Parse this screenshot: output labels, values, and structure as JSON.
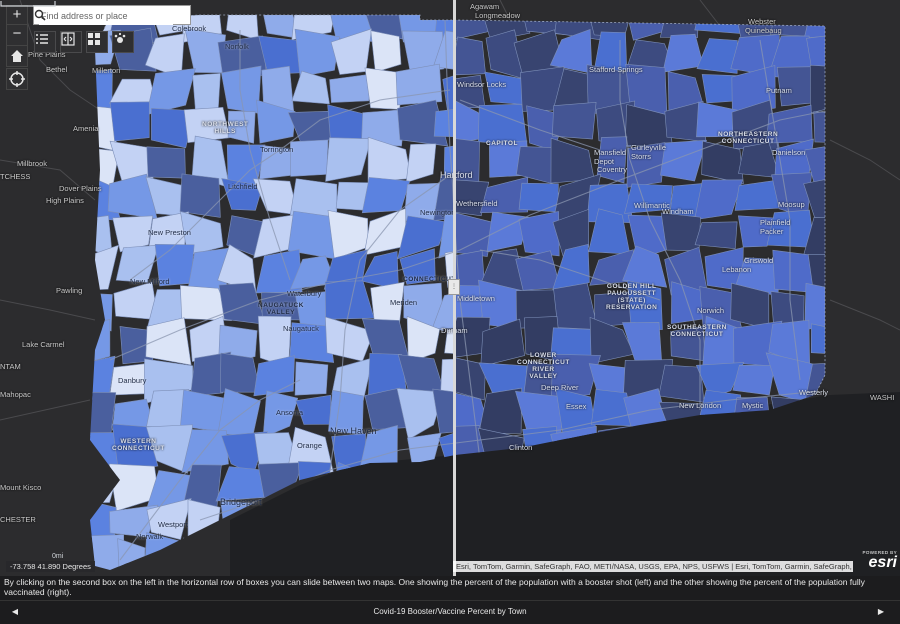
{
  "search": {
    "placeholder": "Find address or place"
  },
  "zoom": {
    "in_label": "+",
    "out_label": "−"
  },
  "coordinates": "-73.758 41.890 Degrees",
  "scale": {
    "label": "0mi"
  },
  "attribution": "Esri, TomTom, Garmin, SafeGraph, FAO, METI/NASA, USGS, EPA, NPS, USFWS | Esri, TomTom, Garmin, SafeGraph, F...",
  "esri": {
    "powered_by": "POWERED BY",
    "logo": "esri"
  },
  "caption": "By clicking on the second box on the left in the horizontal row of boxes you can slide between two maps. One showing the percent of the population with a booster shot (left) and the other showing the percent of the population fully vaccinated (right).",
  "footer": {
    "title": "Covid-19 Booster/Vaccine Percent by Town",
    "prev_label": "◀",
    "next_label": "▶"
  },
  "colors": {
    "ramp_light": "#dbe4f7",
    "ramp_mid": "#5b82e0",
    "ramp_dark": "#34426b",
    "basemap": "#2b2b2d"
  },
  "icons": [
    "zoom-in-icon",
    "zoom-out-icon",
    "home-icon",
    "locate-icon",
    "search-icon",
    "layer-list-icon",
    "swipe-icon",
    "basemap-gallery-icon",
    "legend-icon"
  ],
  "places": {
    "agawam": "Agawam",
    "longmeadow": "Longmeadow",
    "webster": "Webster",
    "quinebaug": "Quinebaug",
    "norfolk": "Norfolk",
    "colebrook": "Colebrook",
    "bethel": "Bethel",
    "millerton": "Millerton",
    "amenia": "Amenia",
    "millbrook": "Millbrook",
    "dover_plains": "Dover Plains",
    "high_plains": "High Plains",
    "pawling": "Pawling",
    "lake_carmel": "Lake Carmel",
    "mahopac": "Mahopac",
    "mount_kisco": "Mount Kisco",
    "pine_plains": "Pine Plains",
    "chester": "CHESTER",
    "tchess": "TCHESS",
    "ntam": "NTAM",
    "washi": "WASHI",
    "westerly": "Westerly",
    "northwest_hills": "NORTHWEST\nHILLS",
    "torrington": "Torrington",
    "litchfield": "Litchfield",
    "new_preston": "New Preston",
    "new_milford": "New Milford",
    "waterbury": "Waterbury",
    "naugatuck_valley": "NAUGATUCK\nVALLEY",
    "naugatuck": "Naugatuck",
    "meriden": "Meriden",
    "danbury": "Danbury",
    "western_connecticut": "WESTERN\nCONNECTICUT",
    "ansonia": "Ansonia",
    "orange": "Orange",
    "new_haven": "New Haven",
    "bridgeport": "Bridgeport",
    "westport": "Westport",
    "norwalk": "Norwalk",
    "newington": "Newington",
    "connecticut": "CONNECTICUT",
    "windsor_locks": "Windsor Locks",
    "stafford_springs": "Stafford Springs",
    "putnam": "Putnam",
    "capitol": "CAPITOL",
    "hartford": "Hartford",
    "wethersfield": "Wethersfield",
    "middletown": "Middletown",
    "durham": "Durham",
    "mansfield_depot": "Mansfield\nDepot",
    "gurleyville_storrs": "Gurleyville\nStorrs",
    "coventry": "Coventry",
    "northeastern_connecticut": "NORTHEASTERN\nCONNECTICUT",
    "danielson": "Danielson",
    "willimantic": "Willimantic",
    "windham": "Windham",
    "moosup": "Moosup",
    "plainfield_packer": "Plainfield\nPacker",
    "lebanon": "Lebanon",
    "griswold": "Griswold",
    "golden_hill": "GOLDEN HILL\nPAUGUSSETT\n(STATE)\nRESERVATION",
    "norwich": "Norwich",
    "southeastern_connecticut": "SOUTHEASTERN\nCONNECTICUT",
    "lower_ct_river": "LOWER\nCONNECTICUT\nRIVER\nVALLEY",
    "deep_river": "Deep River",
    "essex": "Essex",
    "new_london": "New London",
    "mystic": "Mystic",
    "clinton": "Clinton"
  }
}
